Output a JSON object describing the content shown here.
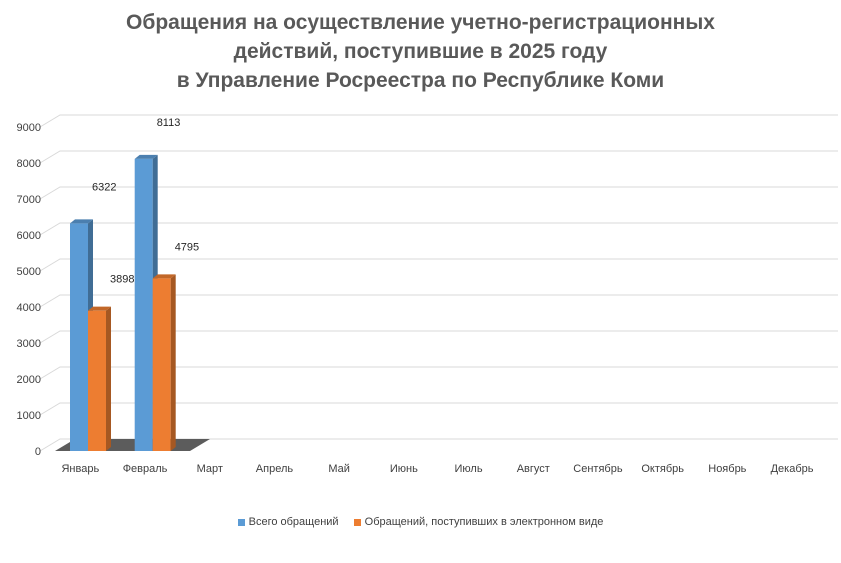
{
  "title_lines": [
    "Обращения на осуществление учетно-регистрационных",
    "действий, поступившие в 2025 году",
    "в Управление Росреестра по Республике Коми"
  ],
  "colors": {
    "series1": "#5b9bd5",
    "series2": "#ed7d31",
    "grid": "#d9d9d9",
    "text": "#404040",
    "floor": "#404040"
  },
  "chart_data": {
    "type": "bar",
    "categories": [
      "Январь",
      "Февраль",
      "Март",
      "Апрель",
      "Май",
      "Июнь",
      "Июль",
      "Август",
      "Сентябрь",
      "Октябрь",
      "Ноябрь",
      "Декабрь"
    ],
    "series": [
      {
        "name": "Всего обращений",
        "values": [
          6322,
          8113,
          null,
          null,
          null,
          null,
          null,
          null,
          null,
          null,
          null,
          null
        ]
      },
      {
        "name": "Обращений, поступивших в электронном виде",
        "values": [
          3898,
          4795,
          null,
          null,
          null,
          null,
          null,
          null,
          null,
          null,
          null,
          null
        ]
      }
    ],
    "yticks": [
      0,
      1000,
      2000,
      3000,
      4000,
      5000,
      6000,
      7000,
      8000,
      9000
    ],
    "ylim": [
      0,
      9000
    ],
    "grid": true,
    "style": "3d-clustered-column",
    "legend_position": "bottom"
  }
}
